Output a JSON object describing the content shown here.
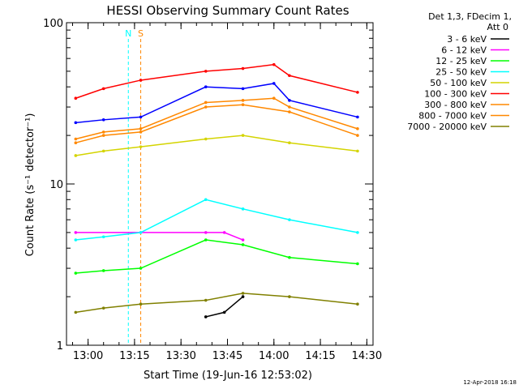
{
  "chart_data": {
    "type": "line",
    "title": "HESSI Observing Summary Count Rates",
    "xlabel": "Start Time (19-Jun-16 12:53:02)",
    "ylabel": "Count Rate (s⁻¹ detector⁻¹)",
    "yscale": "log",
    "ylim": [
      1,
      100
    ],
    "xlim": [
      "12:53:02",
      "14:32:00"
    ],
    "x_ticks": [
      "13:00",
      "13:15",
      "13:30",
      "13:45",
      "14:00",
      "14:15",
      "14:30"
    ],
    "y_ticks": [
      "1",
      "10",
      "100"
    ],
    "legend_header": [
      "Det 1,3, FDecim 1,",
      "Att 0"
    ],
    "legend_position": "right",
    "footer_date": "12-Apr-2018 16:18",
    "series": [
      {
        "name": "3 - 6 keV",
        "color": "#000000",
        "x": [
          "12:56",
          "13:17",
          "13:38",
          "13:44",
          "13:50"
        ],
        "y": [
          null,
          null,
          1.5,
          1.6,
          2.0
        ]
      },
      {
        "name": "6 - 12 keV",
        "color": "#ff00ff",
        "x": [
          "12:56",
          "13:17",
          "13:38",
          "13:44",
          "13:50"
        ],
        "y": [
          5.0,
          5.0,
          5.0,
          5.0,
          4.5
        ]
      },
      {
        "name": "12 - 25 keV",
        "color": "#00ff00",
        "x": [
          "12:56",
          "13:05",
          "13:17",
          "13:38",
          "13:50",
          "14:05",
          "14:27"
        ],
        "y": [
          2.8,
          2.9,
          3.0,
          4.5,
          4.2,
          3.5,
          3.2
        ]
      },
      {
        "name": "25 - 50 keV",
        "color": "#00ffff",
        "x": [
          "12:56",
          "13:05",
          "13:17",
          "13:38",
          "13:50",
          "14:05",
          "14:27"
        ],
        "y": [
          4.5,
          4.7,
          5.0,
          8.0,
          7.0,
          6.0,
          5.0
        ]
      },
      {
        "name": "50 - 100 keV",
        "color": "#d4d400",
        "x": [
          "12:56",
          "13:05",
          "13:17",
          "13:38",
          "13:50",
          "14:05",
          "14:27"
        ],
        "y": [
          15,
          16,
          17,
          19,
          20,
          18,
          16
        ]
      },
      {
        "name": "100 - 300 keV",
        "color": "#ff0000",
        "x": [
          "12:56",
          "13:05",
          "13:17",
          "13:38",
          "13:50",
          "14:00",
          "14:05",
          "14:27"
        ],
        "y": [
          34,
          39,
          44,
          50,
          52,
          55,
          47,
          37
        ]
      },
      {
        "name": "300 - 800 keV",
        "color": "#ff8800",
        "x": [
          "12:56",
          "13:05",
          "13:17",
          "13:38",
          "13:50",
          "14:00",
          "14:05",
          "14:27"
        ],
        "y": [
          19,
          21,
          22,
          32,
          33,
          34,
          30,
          22
        ]
      },
      {
        "name": "800 - 7000 keV",
        "color": "#ff8800",
        "x": [
          "12:56",
          "13:05",
          "13:17",
          "13:38",
          "13:50",
          "14:05",
          "14:27"
        ],
        "y": [
          18,
          20,
          21,
          30,
          31,
          28,
          20
        ]
      },
      {
        "name": "7000 - 20000 keV",
        "color": "#808000",
        "x": [
          "12:56",
          "13:05",
          "13:17",
          "13:38",
          "13:50",
          "14:05",
          "14:27"
        ],
        "y": [
          1.6,
          1.7,
          1.8,
          1.9,
          2.1,
          2.0,
          1.8
        ]
      },
      {
        "name": "",
        "color": "#0000ff",
        "x": [
          "12:56",
          "13:05",
          "13:17",
          "13:38",
          "13:50",
          "14:00",
          "14:05",
          "14:27"
        ],
        "y": [
          24,
          25,
          26,
          40,
          39,
          42,
          33,
          26
        ]
      }
    ],
    "annotations": [
      {
        "text": "N",
        "color": "#00ffff",
        "x": "13:13"
      },
      {
        "text": "S",
        "color": "#ff8800",
        "x": "13:17"
      }
    ]
  }
}
